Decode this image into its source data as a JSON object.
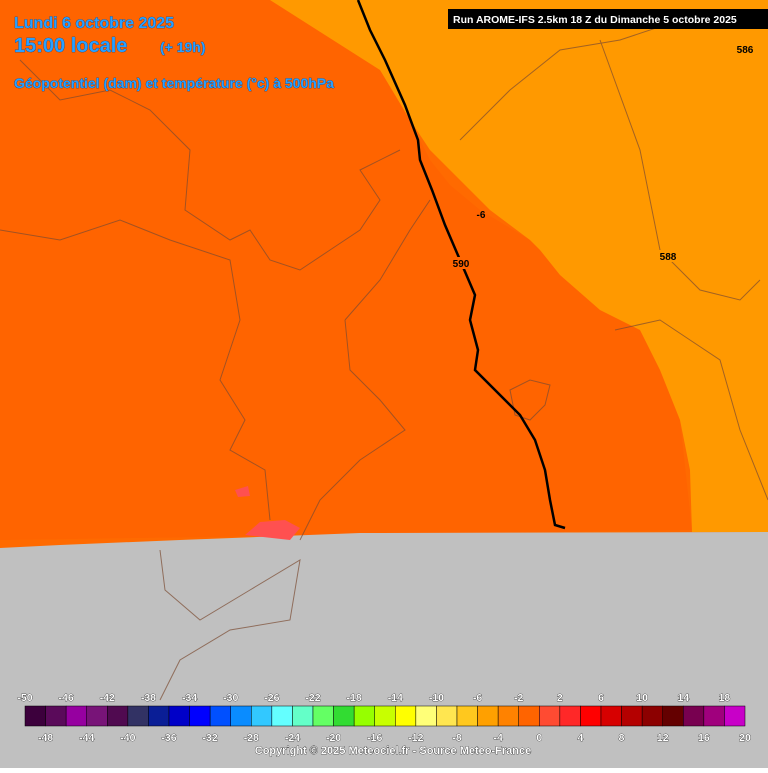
{
  "header": {
    "date": "Lundi 6 octobre 2025",
    "time": "15:00 locale",
    "lead": "(+ 19h)",
    "parameter": "Géopotentiel (dam) et température (°c) à 500hPa",
    "run": "Run AROME-IFS 2.5km 18 Z du Dimanche 5 octobre 2025"
  },
  "map": {
    "contour_labels": [
      586,
      588,
      590
    ],
    "isotherm_labels": [
      -6
    ]
  },
  "legend": {
    "ticks": [
      -50,
      -48,
      -46,
      -44,
      -42,
      -40,
      -38,
      -36,
      -34,
      -32,
      -30,
      -28,
      -26,
      -24,
      -22,
      -20,
      -18,
      -16,
      -14,
      -12,
      -10,
      -8,
      -6,
      -4,
      -2,
      0,
      2,
      4,
      6,
      8,
      10,
      12,
      14,
      16,
      18,
      20
    ],
    "colors": [
      "#3c003c",
      "#5a0a5a",
      "#9600a0",
      "#781478",
      "#500a50",
      "#323264",
      "#0a1e96",
      "#0000c8",
      "#0000ff",
      "#0050ff",
      "#0a8cff",
      "#32c8ff",
      "#64ffff",
      "#64ffc8",
      "#64ff64",
      "#32dc32",
      "#96ff00",
      "#c8ff00",
      "#ffff00",
      "#ffff78",
      "#ffe650",
      "#ffc81e",
      "#ffa000",
      "#ff8200",
      "#ff6400",
      "#ff4b32",
      "#ff2828",
      "#ff0000",
      "#d70000",
      "#b40000",
      "#8c0000",
      "#640000",
      "#780050",
      "#a0007d",
      "#c800c8",
      "#ff00ff",
      "#ff64ff",
      "#ff96ff"
    ]
  },
  "footer": {
    "copyright": "Copyright © 2025 Meteociel.fr - Source Meteo-France"
  }
}
